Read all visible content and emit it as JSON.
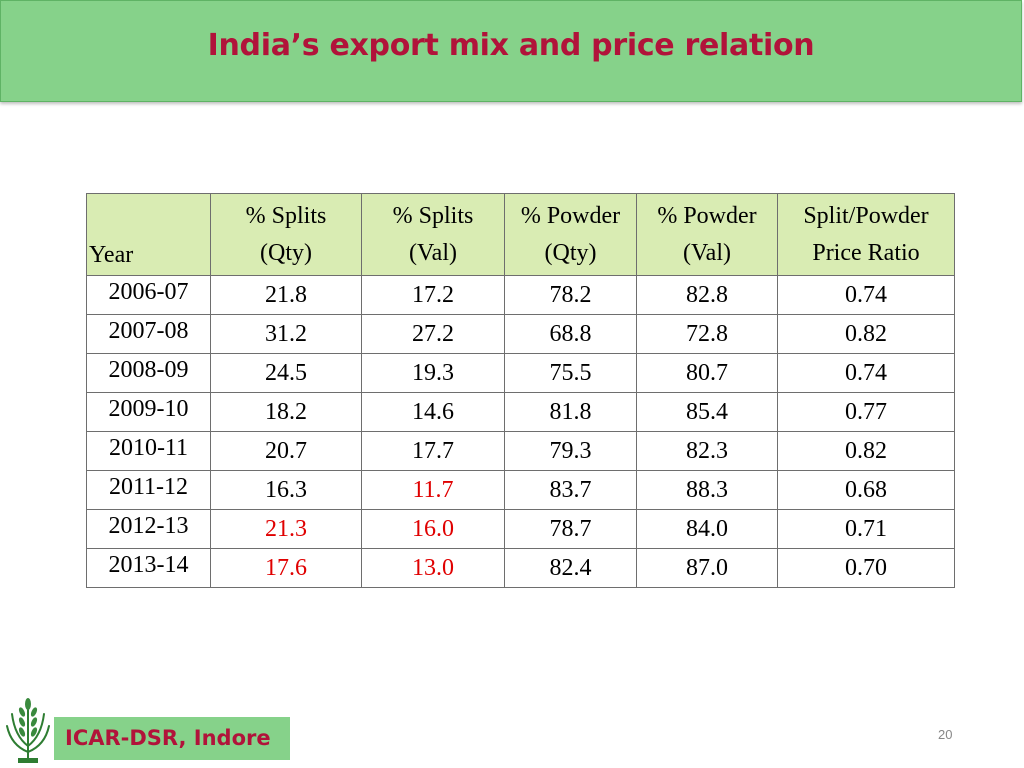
{
  "slide": {
    "title": "India’s export mix and price relation",
    "page_number": "20",
    "footer": "ICAR-DSR, Indore",
    "logo_icon": "icar-wheat-logo-icon",
    "colors": {
      "band": "#86d28a",
      "title": "#b1133a",
      "header_fill": "#d9ecb3",
      "highlight": "#e00000"
    }
  },
  "table": {
    "headers": [
      {
        "line1": "",
        "line2": "Year"
      },
      {
        "line1": "% Splits",
        "line2": "(Qty)"
      },
      {
        "line1": "% Splits",
        "line2": "(Val)"
      },
      {
        "line1": "% Powder",
        "line2": "(Qty)"
      },
      {
        "line1": "% Powder",
        "line2": "(Val)"
      },
      {
        "line1": "Split/Powder",
        "line2": "Price Ratio"
      }
    ],
    "rows": [
      {
        "year": "2006-07",
        "splits_qty": "21.8",
        "splits_val": "17.2",
        "powder_qty": "78.2",
        "powder_val": "82.8",
        "ratio": "0.74"
      },
      {
        "year": "2007-08",
        "splits_qty": "31.2",
        "splits_val": "27.2",
        "powder_qty": "68.8",
        "powder_val": "72.8",
        "ratio": "0.82"
      },
      {
        "year": "2008-09",
        "splits_qty": "24.5",
        "splits_val": "19.3",
        "powder_qty": "75.5",
        "powder_val": "80.7",
        "ratio": "0.74"
      },
      {
        "year": "2009-10",
        "splits_qty": "18.2",
        "splits_val": "14.6",
        "powder_qty": "81.8",
        "powder_val": "85.4",
        "ratio": "0.77"
      },
      {
        "year": "2010-11",
        "splits_qty": "20.7",
        "splits_val": "17.7",
        "powder_qty": "79.3",
        "powder_val": "82.3",
        "ratio": "0.82"
      },
      {
        "year": "2011-12",
        "splits_qty": "16.3",
        "splits_val": "11.7",
        "powder_qty": "83.7",
        "powder_val": "88.3",
        "ratio": "0.68"
      },
      {
        "year": "2012-13",
        "splits_qty": "21.3",
        "splits_val": "16.0",
        "powder_qty": "78.7",
        "powder_val": "84.0",
        "ratio": "0.71"
      },
      {
        "year": "2013-14",
        "splits_qty": "17.6",
        "splits_val": "13.0",
        "powder_qty": "82.4",
        "powder_val": "87.0",
        "ratio": "0.70"
      }
    ]
  }
}
